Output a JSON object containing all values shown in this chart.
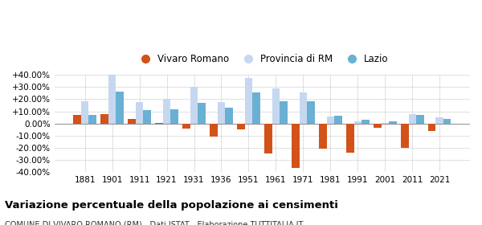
{
  "years": [
    1881,
    1901,
    1911,
    1921,
    1931,
    1936,
    1951,
    1961,
    1971,
    1981,
    1991,
    2001,
    2011,
    2021
  ],
  "vivaro": [
    7.0,
    8.0,
    3.5,
    0.5,
    -4.5,
    -11.0,
    -5.0,
    -25.0,
    -37.0,
    -21.0,
    -24.0,
    -3.5,
    -20.5,
    -6.0
  ],
  "provincia": [
    18.5,
    40.0,
    17.5,
    20.5,
    30.0,
    17.5,
    37.5,
    29.0,
    25.5,
    6.0,
    2.0,
    0.5,
    8.0,
    5.0
  ],
  "lazio": [
    7.0,
    26.0,
    11.0,
    12.0,
    17.0,
    13.0,
    25.5,
    18.5,
    18.5,
    6.5,
    3.0,
    1.5,
    7.0,
    4.0
  ],
  "vivaro_color": "#d2521a",
  "provincia_color": "#c5d8f0",
  "lazio_color": "#6ab0d4",
  "title": "Variazione percentuale della popolazione ai censimenti",
  "subtitle": "COMUNE DI VIVARO ROMANO (RM) - Dati ISTAT - Elaborazione TUTTITALIA.IT",
  "legend_labels": [
    "Vivaro Romano",
    "Provincia di RM",
    "Lazio"
  ],
  "ylim": [
    -40,
    40
  ],
  "yticks": [
    -40,
    -30,
    -20,
    -10,
    0,
    10,
    20,
    30,
    40
  ],
  "ytick_labels": [
    "-40.00%",
    "-30.00%",
    "-20.00%",
    "-10.00%",
    "0.00%",
    "+10.00%",
    "+20.00%",
    "+30.00%",
    "+40.00%"
  ],
  "bar_width": 0.28
}
